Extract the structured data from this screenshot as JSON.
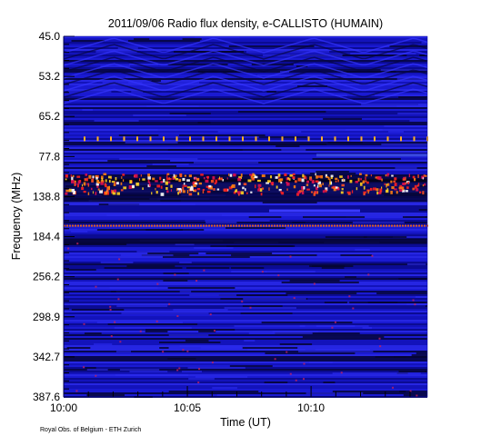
{
  "chart_data": {
    "type": "heatmap",
    "title": "2011/09/06  Radio flux density, e-CALLISTO (HUMAIN)",
    "xlabel": "Time (UT)",
    "ylabel": "Frequency (MHz)",
    "x_tick_labels": [
      "10:00",
      "10:05",
      "10:10"
    ],
    "y_tick_labels": [
      "45.0",
      "53.2",
      "65.2",
      "77.8",
      "138.8",
      "184.4",
      "256.2",
      "298.9",
      "342.7",
      "387.6"
    ],
    "y_axis_direction": "frequency increases downward",
    "colormap": "blue-black background with red/yellow/white bright emission",
    "background_color": "#1010c8",
    "features": [
      {
        "frequency_mhz": 138.8,
        "type": "persistent interference band",
        "intensity": "high"
      },
      {
        "frequency_mhz": 184.4,
        "type": "narrow constant emission line",
        "intensity": "medium"
      },
      {
        "frequency_mhz": 77.8,
        "type": "periodic dotted emission",
        "intensity": "medium"
      }
    ]
  },
  "footer": {
    "credit": "Royal Obs. of Belgium - ETH Zurich"
  }
}
